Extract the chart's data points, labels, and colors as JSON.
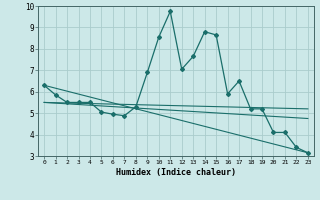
{
  "xlabel": "Humidex (Indice chaleur)",
  "background_color": "#cce8e8",
  "grid_color": "#aacccc",
  "line_color": "#1a6e6a",
  "xlim": [
    -0.5,
    23.5
  ],
  "ylim": [
    3,
    10
  ],
  "yticks": [
    3,
    4,
    5,
    6,
    7,
    8,
    9,
    10
  ],
  "xticks": [
    0,
    1,
    2,
    3,
    4,
    5,
    6,
    7,
    8,
    9,
    10,
    11,
    12,
    13,
    14,
    15,
    16,
    17,
    18,
    19,
    20,
    21,
    22,
    23
  ],
  "series1_x": [
    0,
    1,
    2,
    3,
    4,
    5,
    6,
    7,
    8,
    9,
    10,
    11,
    12,
    13,
    14,
    15,
    16,
    17,
    18,
    19,
    20,
    21,
    22,
    23
  ],
  "series1_y": [
    6.3,
    5.85,
    5.5,
    5.5,
    5.5,
    5.05,
    4.95,
    4.88,
    5.3,
    6.9,
    8.55,
    9.75,
    7.05,
    7.65,
    8.8,
    8.65,
    5.9,
    6.5,
    5.2,
    5.2,
    4.1,
    4.1,
    3.4,
    3.15
  ],
  "series2_x": [
    0,
    23
  ],
  "series2_y": [
    6.3,
    3.15
  ],
  "series3_x": [
    0,
    23
  ],
  "series3_y": [
    5.5,
    5.2
  ],
  "series4_x": [
    0,
    23
  ],
  "series4_y": [
    5.5,
    4.75
  ]
}
